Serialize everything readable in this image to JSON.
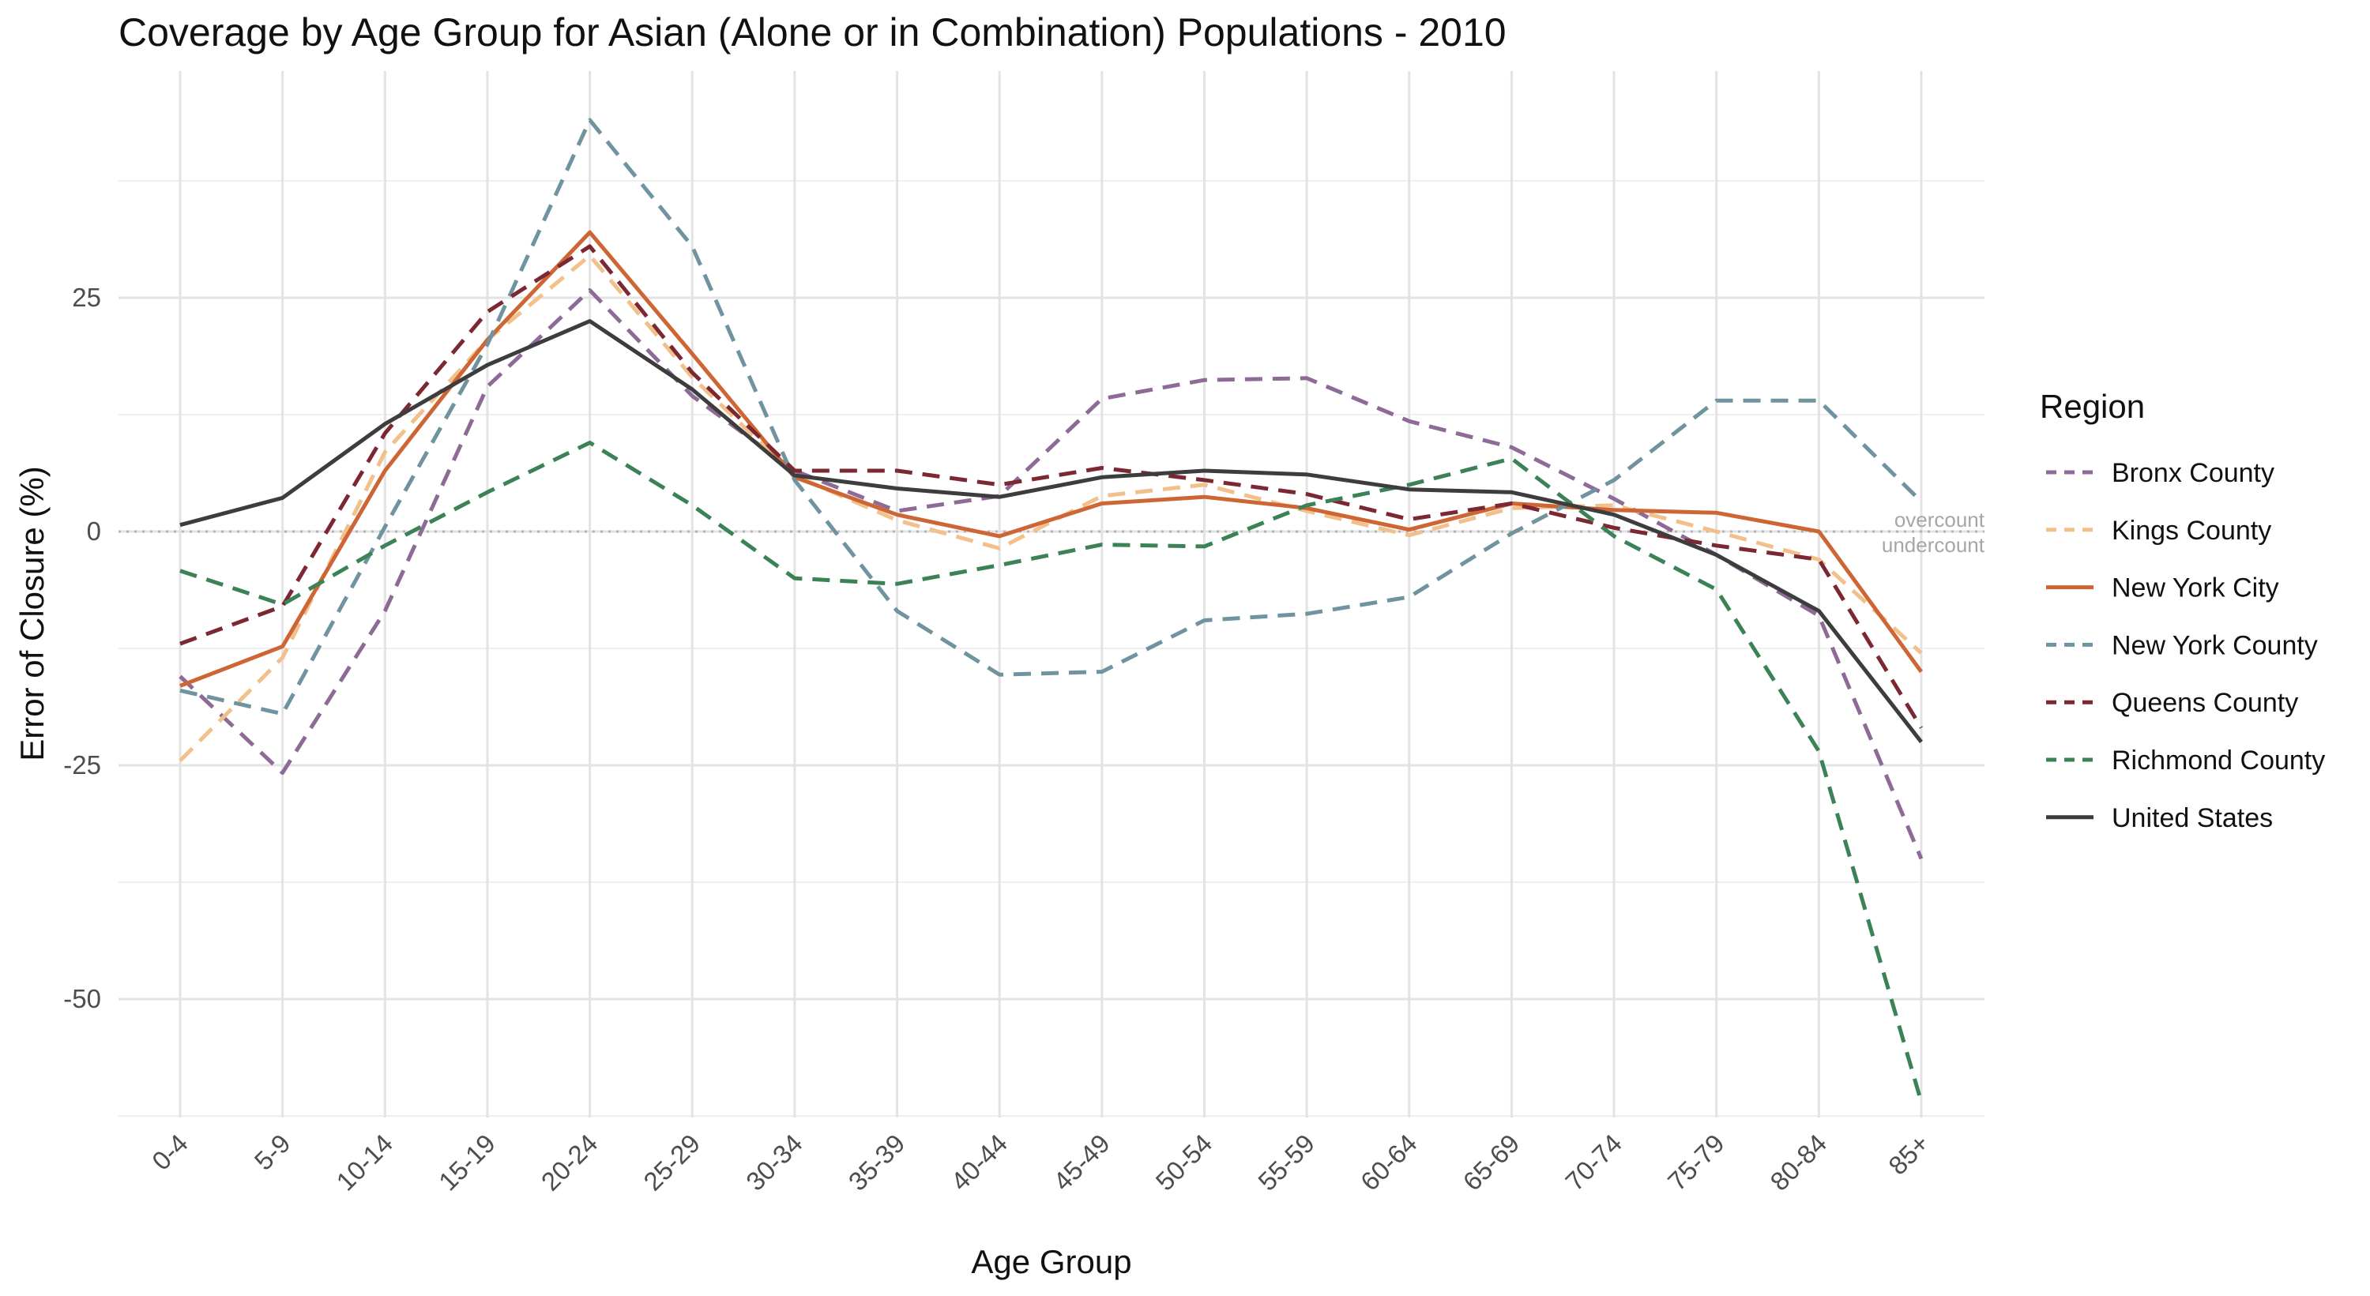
{
  "chart_data": {
    "type": "line",
    "title": "Coverage by Age Group for Asian (Alone or in Combination) Populations - 2010",
    "xlabel": "Age Group",
    "ylabel": "Error of Closure (%)",
    "ylim": [
      -62,
      51
    ],
    "yticks": [
      -50,
      -25,
      0,
      25
    ],
    "grid": true,
    "legend_title": "Region",
    "legend_position": "right",
    "reference_line": {
      "y": 0,
      "label_above": "overcount",
      "label_below": "undercount",
      "color": "#b3b3b3"
    },
    "categories": [
      "0-4",
      "5-9",
      "10-14",
      "15-19",
      "20-24",
      "25-29",
      "30-34",
      "35-39",
      "40-44",
      "45-49",
      "50-54",
      "55-59",
      "60-64",
      "65-69",
      "70-74",
      "75-79",
      "80-84",
      "85+"
    ],
    "series": [
      {
        "name": "Bronx County",
        "color": "#8e6b97",
        "dashed": true,
        "values": [
          -15.5,
          -25.8,
          -8.5,
          15.5,
          25.8,
          14.5,
          6.5,
          2.2,
          3.8,
          14.2,
          16.2,
          16.4,
          11.8,
          9.0,
          3.5,
          -2.5,
          -9.0,
          -35.0
        ]
      },
      {
        "name": "Kings County",
        "color": "#f2c08b",
        "dashed": true,
        "values": [
          -24.5,
          -13.5,
          8.5,
          20.5,
          29.5,
          16.5,
          6.0,
          1.2,
          -1.8,
          3.8,
          5.0,
          2.2,
          -0.4,
          2.5,
          2.8,
          0.0,
          -3.0,
          -13.0
        ]
      },
      {
        "name": "New York City",
        "color": "#cd6634",
        "dashed": false,
        "values": [
          -16.5,
          -12.3,
          6.5,
          20.5,
          32.0,
          19.0,
          5.8,
          1.8,
          -0.5,
          3.0,
          3.7,
          2.5,
          0.2,
          3.0,
          2.3,
          2.0,
          0.0,
          -15.0
        ]
      },
      {
        "name": "New York County",
        "color": "#6f94a0",
        "dashed": true,
        "values": [
          -17.0,
          -19.5,
          0.5,
          20.0,
          44.0,
          30.5,
          5.5,
          -8.5,
          -15.3,
          -15.0,
          -9.5,
          -8.8,
          -7.0,
          -0.2,
          5.5,
          14.0,
          14.0,
          3.2
        ]
      },
      {
        "name": "Queens County",
        "color": "#7c2833",
        "dashed": true,
        "values": [
          -12.0,
          -8.0,
          10.5,
          23.5,
          30.5,
          17.0,
          6.5,
          6.5,
          5.0,
          6.8,
          5.5,
          4.0,
          1.3,
          3.0,
          0.4,
          -1.5,
          -3.0,
          -21.0
        ]
      },
      {
        "name": "Richmond County",
        "color": "#3b8257",
        "dashed": true,
        "values": [
          -4.2,
          -7.8,
          -1.5,
          4.2,
          9.5,
          2.8,
          -5.0,
          -5.6,
          -3.6,
          -1.4,
          -1.6,
          2.8,
          5.0,
          7.8,
          -0.5,
          -6.2,
          -23.5,
          -61.0
        ]
      },
      {
        "name": "United States",
        "color": "#3d3d3d",
        "dashed": false,
        "values": [
          0.7,
          3.6,
          11.5,
          17.8,
          22.5,
          15.2,
          6.0,
          4.6,
          3.7,
          5.8,
          6.5,
          6.1,
          4.5,
          4.2,
          1.8,
          -2.5,
          -8.5,
          -22.5
        ]
      }
    ]
  }
}
